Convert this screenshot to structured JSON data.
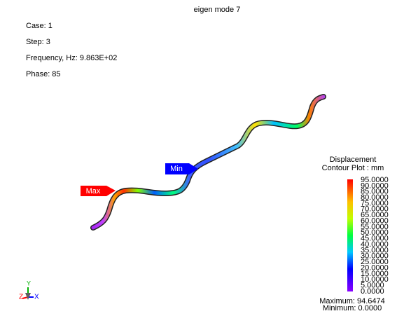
{
  "header": {
    "title": "eigen mode 7"
  },
  "info": [
    "Case: 1",
    "Step: 3",
    "Frequency, Hz: 9.863E+02",
    "Phase: 85"
  ],
  "markers": {
    "max": "Max",
    "min": "Min"
  },
  "legend": {
    "title": "Displacement",
    "subtitle": "Contour Plot : mm",
    "labels": [
      "95.0000",
      "90.0000",
      "85.0000",
      "80.0000",
      "75.0000",
      "70.0000",
      "65.0000",
      "60.0000",
      "55.0000",
      "50.0000",
      "45.0000",
      "40.0000",
      "35.0000",
      "30.0000",
      "25.0000",
      "20.0000",
      "15.0000",
      "10.0000",
      "5.0000",
      "0.0000"
    ],
    "maximum": "Maximum: 94.6474",
    "minimum": "Minimum: 0.0000"
  },
  "triad": {
    "y": "Y",
    "z": "Z",
    "x": "X"
  }
}
